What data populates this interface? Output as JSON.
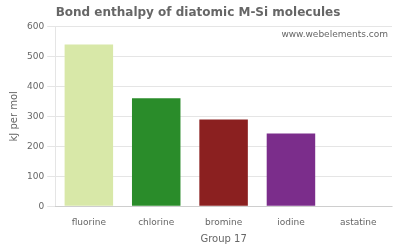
{
  "chart_data": {
    "type": "bar",
    "title": "Bond enthalpy of diatomic M-Si molecules",
    "xlabel": "Group 17",
    "ylabel": "kJ per mol",
    "categories": [
      "fluorine",
      "chlorine",
      "bromine",
      "iodine",
      "astatine"
    ],
    "values": [
      540,
      360,
      289,
      243,
      0
    ],
    "colors": [
      "#d8e8a8",
      "#2a8c2a",
      "#8b2020",
      "#7b2d8b",
      "#d4a000"
    ],
    "ylim": [
      0,
      600
    ],
    "yticks": [
      0,
      100,
      200,
      300,
      400,
      500,
      600
    ],
    "grid": true,
    "annotations": [
      "www.webelements.com"
    ]
  }
}
